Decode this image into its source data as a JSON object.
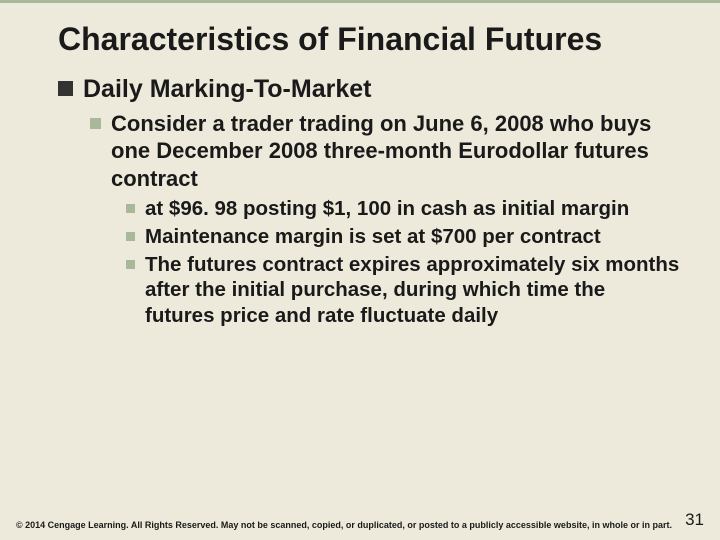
{
  "slide": {
    "title": "Characteristics of Financial Futures",
    "level1": {
      "text": "Daily Marking-To-Market"
    },
    "level2": {
      "text": "Consider a trader trading on June 6, 2008 who buys one December 2008 three-month Eurodollar futures contract"
    },
    "level3": [
      "at $96. 98 posting $1, 100 in cash as initial margin",
      "Maintenance margin is set at $700 per contract",
      "The futures contract expires approximately six months after the initial purchase, during which time the futures price and rate fluctuate daily"
    ],
    "copyright": "© 2014 Cengage Learning. All Rights Reserved. May not be scanned, copied, or duplicated, or posted to a publicly accessible website, in whole or in part.",
    "page_number": "31"
  },
  "style": {
    "background_color": "#edeadb",
    "accent_border_color": "#a8b89a",
    "l1_bullet_color": "#333333",
    "l2_bullet_color": "#a8b89a",
    "l3_bullet_color": "#a8b89a",
    "title_fontsize": 32,
    "l1_fontsize": 25,
    "l2_fontsize": 22,
    "l3_fontsize": 20.5,
    "footer_fontsize": 9,
    "pagenum_fontsize": 17
  }
}
